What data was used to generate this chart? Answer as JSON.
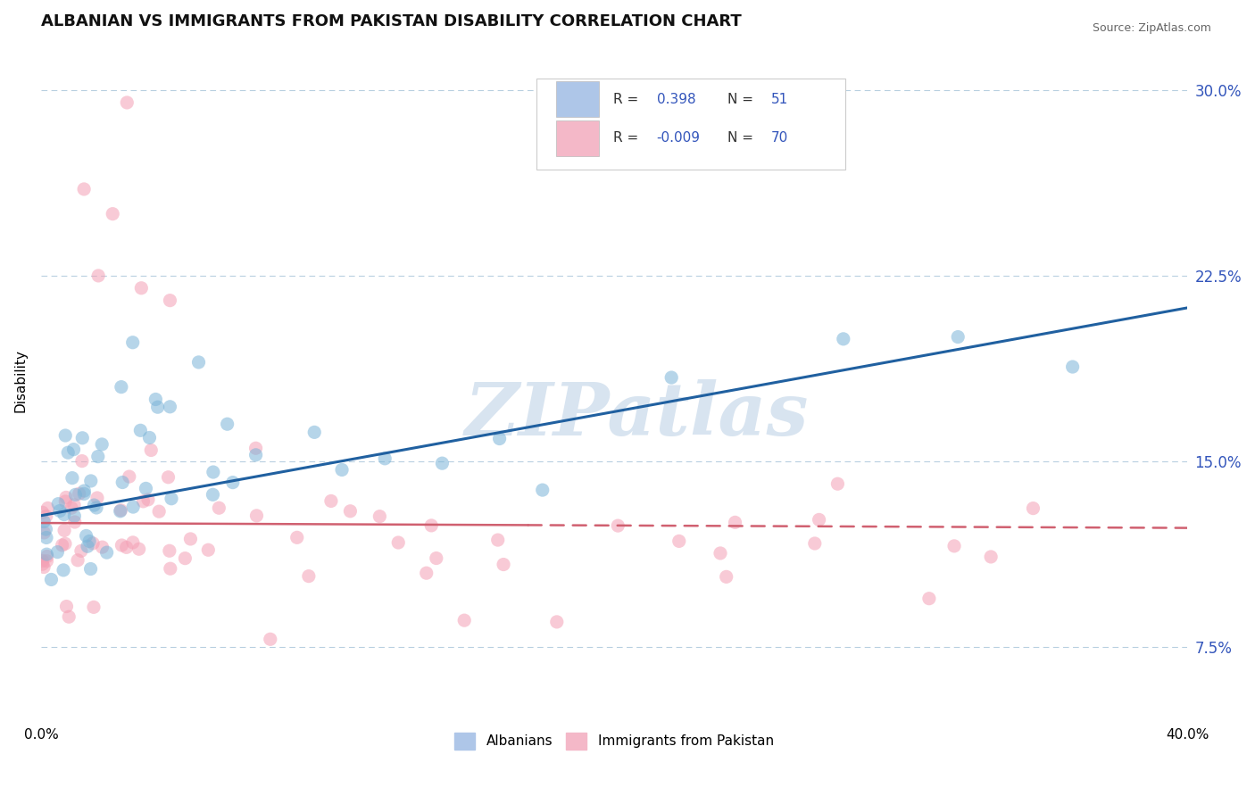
{
  "title": "ALBANIAN VS IMMIGRANTS FROM PAKISTAN DISABILITY CORRELATION CHART",
  "source": "Source: ZipAtlas.com",
  "ylabel_label": "Disability",
  "xtick_labels": [
    "0.0%",
    "40.0%"
  ],
  "ytick_positions": [
    7.5,
    15.0,
    22.5,
    30.0
  ],
  "ytick_labels": [
    "7.5%",
    "15.0%",
    "22.5%",
    "30.0%"
  ],
  "blue_color": "#7ab4d8",
  "pink_color": "#f4a0b5",
  "blue_line_color": "#2060a0",
  "pink_line_color": "#d06070",
  "watermark": "ZIPatlas",
  "watermark_color": "#d8e4f0",
  "background_color": "#ffffff",
  "xlim": [
    0,
    40
  ],
  "ylim": [
    4.5,
    32
  ],
  "legend_blue_R": "0.398",
  "legend_blue_N": "51",
  "legend_pink_R": "-0.009",
  "legend_pink_N": "70",
  "title_fontsize": 13,
  "blue_line_start_x": 0,
  "blue_line_start_y": 12.8,
  "blue_line_end_x": 40,
  "blue_line_end_y": 21.2,
  "pink_line_start_x": 0,
  "pink_line_start_y": 12.5,
  "pink_line_end_x": 40,
  "pink_line_end_y": 12.3,
  "pink_solid_end_x": 17
}
